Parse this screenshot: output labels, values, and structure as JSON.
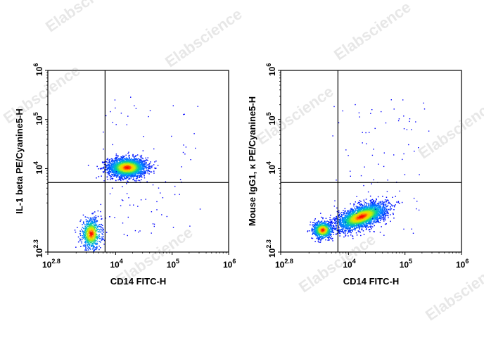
{
  "watermark_text": "Elabscience",
  "colors": {
    "frame": "#000000",
    "density_low": "#0000ff",
    "density_mid": "#00c8a0",
    "density_high": "#ffff00",
    "density_peak": "#ff0000"
  },
  "chart_data": [
    {
      "type": "scatter",
      "name": "left-plot",
      "xlabel": "CD14 FITC-H",
      "ylabel": "IL-1 beta PE/Cyanine5-H",
      "x_scale": "log",
      "y_scale": "log",
      "xlim_exp": [
        2.8,
        6
      ],
      "ylim_exp": [
        2.3,
        6
      ],
      "x_ticks": [
        {
          "base": "10",
          "exp": "2.8"
        },
        {
          "base": "10",
          "exp": "4"
        },
        {
          "base": "10",
          "exp": "5"
        },
        {
          "base": "10",
          "exp": "6"
        }
      ],
      "y_ticks": [
        {
          "base": "10",
          "exp": "2.3"
        },
        {
          "base": "10",
          "exp": "4"
        },
        {
          "base": "10",
          "exp": "5"
        },
        {
          "base": "10",
          "exp": "6"
        }
      ],
      "quadrant_gate": {
        "x": 6500,
        "y": 5200
      },
      "populations": [
        {
          "label": "CD14+ IL-1 beta high",
          "cx": 16000,
          "cy": 10500,
          "n": 2200
        },
        {
          "label": "CD14 low",
          "cx": 3700,
          "cy": 470,
          "n": 700
        }
      ]
    },
    {
      "type": "scatter",
      "name": "right-plot",
      "xlabel": "CD14 FITC-H",
      "ylabel": "Mouse IgG1, κ PE/Cyanine5-H",
      "x_scale": "log",
      "y_scale": "log",
      "xlim_exp": [
        2.8,
        6
      ],
      "ylim_exp": [
        2.3,
        6
      ],
      "x_ticks": [
        {
          "base": "10",
          "exp": "2.8"
        },
        {
          "base": "10",
          "exp": "4"
        },
        {
          "base": "10",
          "exp": "5"
        },
        {
          "base": "10",
          "exp": "6"
        }
      ],
      "y_ticks": [
        {
          "base": "10",
          "exp": "2.3"
        },
        {
          "base": "10",
          "exp": "4"
        },
        {
          "base": "10",
          "exp": "5"
        },
        {
          "base": "10",
          "exp": "6"
        }
      ],
      "quadrant_gate": {
        "x": 6500,
        "y": 5200
      },
      "populations": [
        {
          "label": "CD14+ isotype",
          "cx": 17000,
          "cy": 1050,
          "n": 2600
        },
        {
          "label": "CD14 low isotype",
          "cx": 3500,
          "cy": 560,
          "n": 700
        }
      ]
    }
  ]
}
